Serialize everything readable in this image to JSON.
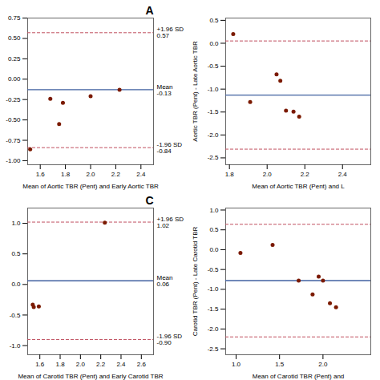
{
  "chart_data": [
    {
      "type": "scatter",
      "title": "A",
      "xlabel": "Mean of Aortic TBR (Pent) and Early Aortic TBR",
      "x": [
        1.68,
        1.78,
        2.0,
        2.23,
        1.75,
        1.52
      ],
      "values": [
        -0.24,
        -0.29,
        -0.21,
        -0.13,
        -0.55,
        -0.86
      ],
      "color": "#7B1A00",
      "xlim": [
        1.5,
        2.5
      ],
      "ylim": [
        -1.05,
        0.75
      ],
      "xticks": [
        1.6,
        1.8,
        {
          "value": 2.0,
          "label": "2.0"
        },
        2.2,
        2.4
      ],
      "yticks": [
        {
          "value": -1.0,
          "label": "-1.00"
        },
        -0.75,
        {
          "value": -0.5,
          "label": "-0.50"
        },
        -0.25,
        {
          "value": 0.0,
          "label": "0.00"
        },
        0.25,
        {
          "value": 0.5,
          "label": "0.50"
        },
        0.75
      ],
      "reference_lines": [
        {
          "value": -0.13,
          "label": "Mean\n-0.13",
          "color": "#4060A0",
          "line_style": "solid"
        },
        {
          "value": 0.57,
          "label": "+1.96 SD\n0.57",
          "color": "#C05060",
          "line_style": "dashed"
        },
        {
          "value": -0.84,
          "label": "-1.96 SD\n-0.84",
          "color": "#C05060",
          "line_style": "dashed"
        }
      ]
    },
    {
      "type": "scatter",
      "xlabel": "Mean of Aortic TBR (Pent) and L",
      "ylabel": "Aortic TBR (Pent) - Late Aortic TBR",
      "x": [
        1.82,
        1.91,
        2.05,
        2.07,
        2.1,
        2.14,
        2.17
      ],
      "values": [
        0.2,
        -1.28,
        -0.68,
        -0.82,
        -1.47,
        -1.49,
        -1.6
      ],
      "color": "#7B1A00",
      "xlim": [
        1.78,
        2.55
      ],
      "ylim": [
        -2.65,
        0.55
      ],
      "xticks": [
        1.8,
        {
          "value": 2.0,
          "label": "2.0"
        },
        2.2,
        2.4
      ],
      "yticks": [
        -2.5,
        {
          "value": -2.0,
          "label": "-2.0"
        },
        -1.5,
        {
          "value": -1.0,
          "label": "-1.0"
        },
        -0.5,
        {
          "value": 0.0,
          "label": "0.0"
        },
        0.5
      ],
      "reference_lines": [
        {
          "value": -1.13,
          "color": "#4060A0",
          "line_style": "solid"
        },
        {
          "value": 0.05,
          "color": "#C05060",
          "line_style": "dashed"
        },
        {
          "value": -2.31,
          "color": "#C05060",
          "line_style": "dashed"
        }
      ]
    },
    {
      "type": "scatter",
      "title": "C",
      "xlabel": "Mean of Carotid TBR (Pent) and Early Carotid TBR",
      "x": [
        1.53,
        1.59,
        2.24,
        1.54
      ],
      "values": [
        -0.33,
        -0.36,
        1.01,
        -0.37
      ],
      "color": "#7B1A00",
      "xlim": [
        1.48,
        2.72
      ],
      "ylim": [
        -1.15,
        1.25
      ],
      "xticks": [
        1.6,
        1.8,
        {
          "value": 2.0,
          "label": "2.0"
        },
        2.2,
        2.4,
        2.6
      ],
      "yticks": [
        {
          "value": -1.0,
          "label": "-1.0"
        },
        -0.5,
        {
          "value": 0.0,
          "label": "0.0"
        },
        0.5,
        {
          "value": 1.0,
          "label": "1.0"
        }
      ],
      "reference_lines": [
        {
          "value": 0.06,
          "label": "Mean\n0.06",
          "color": "#4060A0",
          "line_style": "solid"
        },
        {
          "value": 1.02,
          "label": "+1.96 SD\n1.02",
          "color": "#C05060",
          "line_style": "dashed"
        },
        {
          "value": -0.9,
          "label": "-1.96 SD\n-0.90",
          "color": "#C05060",
          "line_style": "dashed"
        }
      ]
    },
    {
      "type": "scatter",
      "xlabel": "Mean of Carotid TBR (Pent) and",
      "ylabel": "Carotid TBR (Pent) - Late Carotid TBR",
      "x": [
        1.05,
        1.42,
        1.72,
        1.88,
        1.95,
        2.0,
        2.08,
        2.15
      ],
      "values": [
        -0.08,
        0.12,
        -0.78,
        -1.13,
        -0.68,
        -0.78,
        -1.35,
        -1.45
      ],
      "color": "#7B1A00",
      "xlim": [
        0.88,
        2.55
      ],
      "ylim": [
        -2.65,
        1.05
      ],
      "xticks": [
        {
          "value": 1.0,
          "label": "1.0"
        },
        1.5,
        {
          "value": 2.0,
          "label": "2.0"
        }
      ],
      "yticks": [
        -2.5,
        {
          "value": -2.0,
          "label": "-2.0"
        },
        -1.5,
        {
          "value": -1.0,
          "label": "-1.0"
        },
        -0.5,
        {
          "value": 0.0,
          "label": "0.0"
        },
        0.5,
        {
          "value": 1.0,
          "label": "1.0"
        }
      ],
      "reference_lines": [
        {
          "value": -0.78,
          "color": "#4060A0",
          "line_style": "solid"
        },
        {
          "value": 0.64,
          "color": "#C05060",
          "line_style": "dashed"
        },
        {
          "value": -2.2,
          "color": "#C05060",
          "line_style": "dashed"
        }
      ]
    }
  ]
}
